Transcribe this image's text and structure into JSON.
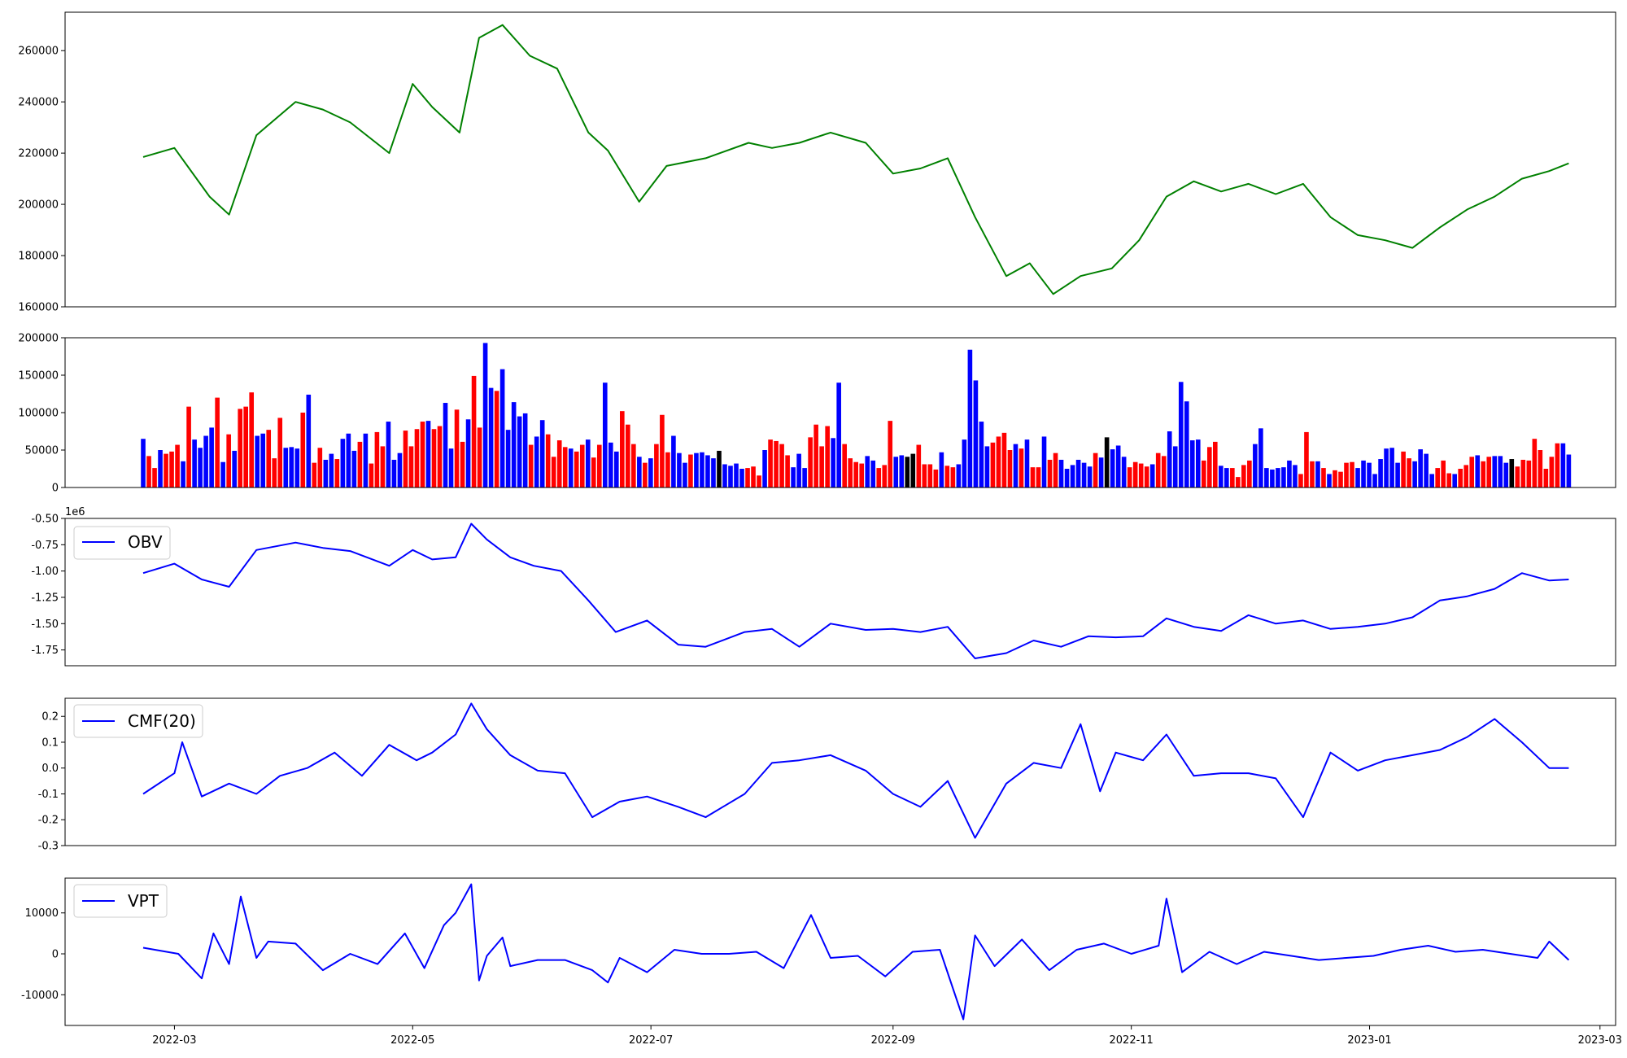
{
  "colors": {
    "price": "#008000",
    "indicator": "#0000ff",
    "up": "#0000ff",
    "down": "#ff0000",
    "flat": "#000000",
    "axes": "#000000"
  },
  "x_ticks": [
    "2022-03",
    "2022-05",
    "2022-07",
    "2022-09",
    "2022-11",
    "2023-01",
    "2023-03"
  ],
  "chart_data": [
    {
      "type": "line",
      "panel": "price",
      "title": "",
      "ylim": [
        160000,
        275000
      ],
      "yticks": [
        "160000",
        "180000",
        "200000",
        "220000",
        "240000",
        "260000"
      ],
      "x_range": [
        "2022-02-01",
        "2023-03-05"
      ],
      "x": [
        "2022-02-21",
        "2022-03-01",
        "2022-03-10",
        "2022-03-15",
        "2022-03-22",
        "2022-04-01",
        "2022-04-08",
        "2022-04-15",
        "2022-04-25",
        "2022-05-01",
        "2022-05-06",
        "2022-05-13",
        "2022-05-18",
        "2022-05-24",
        "2022-05-31",
        "2022-06-07",
        "2022-06-15",
        "2022-06-20",
        "2022-06-28",
        "2022-07-05",
        "2022-07-15",
        "2022-07-26",
        "2022-08-01",
        "2022-08-08",
        "2022-08-16",
        "2022-08-25",
        "2022-09-01",
        "2022-09-08",
        "2022-09-15",
        "2022-09-22",
        "2022-09-30",
        "2022-10-06",
        "2022-10-12",
        "2022-10-19",
        "2022-10-27",
        "2022-11-03",
        "2022-11-10",
        "2022-11-17",
        "2022-11-24",
        "2022-12-01",
        "2022-12-08",
        "2022-12-15",
        "2022-12-22",
        "2022-12-29",
        "2023-01-05",
        "2023-01-12",
        "2023-01-19",
        "2023-01-26",
        "2023-02-02",
        "2023-02-09",
        "2023-02-16",
        "2023-02-21"
      ],
      "values": [
        218500,
        222000,
        203000,
        196000,
        227000,
        240000,
        237000,
        232000,
        220000,
        247000,
        238000,
        228000,
        265000,
        270000,
        258000,
        253000,
        228000,
        221000,
        201000,
        215000,
        218000,
        224000,
        222000,
        224000,
        228000,
        224000,
        212000,
        214000,
        218000,
        195000,
        172000,
        177000,
        165000,
        172000,
        175000,
        186000,
        203000,
        209000,
        205000,
        208000,
        204000,
        208000,
        195000,
        188000,
        186000,
        183000,
        191000,
        198000,
        203000,
        210000,
        213000,
        216000
      ],
      "series_color": "#008000"
    },
    {
      "type": "bar",
      "panel": "volume",
      "ylim": [
        0,
        200000
      ],
      "yticks": [
        "0",
        "50000",
        "100000",
        "150000",
        "200000"
      ],
      "x_range": [
        "2022-02-01",
        "2023-03-05"
      ],
      "start_date": "2022-02-21",
      "end_date": "2023-02-21",
      "values": [
        65000,
        42000,
        26000,
        50000,
        45000,
        48000,
        57000,
        35000,
        108000,
        64000,
        53000,
        69000,
        80000,
        120000,
        34000,
        71000,
        49000,
        105000,
        108000,
        127000,
        69000,
        72000,
        77000,
        39000,
        93000,
        53000,
        54000,
        52000,
        100000,
        124000,
        33000,
        53000,
        37000,
        45000,
        38000,
        65000,
        72000,
        49000,
        61000,
        72000,
        32000,
        74000,
        55000,
        88000,
        37000,
        46000,
        76000,
        55000,
        78000,
        88000,
        89000,
        78000,
        82000,
        113000,
        52000,
        104000,
        61000,
        91000,
        149000,
        80000,
        193000,
        133000,
        129000,
        158000,
        77000,
        114000,
        95000,
        99000,
        57000,
        68000,
        90000,
        71000,
        41000,
        63000,
        54000,
        52000,
        48000,
        57000,
        64000,
        40000,
        57000,
        140000,
        60000,
        48000,
        102000,
        84000,
        58000,
        41000,
        33000,
        39000,
        58000,
        97000,
        47000,
        69000,
        46000,
        33000,
        44000,
        46000,
        47000,
        43000,
        39000,
        49000,
        31000,
        29000,
        32000,
        25000,
        26000,
        28000,
        16000,
        50000,
        64000,
        62000,
        58000,
        43000,
        27000,
        45000,
        26000,
        67000,
        84000,
        55000,
        82000,
        66000,
        140000,
        58000,
        39000,
        34000,
        32000,
        42000,
        36000,
        26000,
        30000,
        89000,
        41000,
        43000,
        41000,
        45000,
        57000,
        31000,
        31000,
        24000,
        47000,
        29000,
        27000,
        31000,
        64000,
        184000,
        143000,
        88000,
        55000,
        60000,
        68000,
        73000,
        50000,
        58000,
        52000,
        64000,
        27000,
        27000,
        68000,
        37000,
        46000,
        37000,
        25000,
        30000,
        37000,
        33000,
        28000,
        46000,
        40000,
        67000,
        51000,
        56000,
        41000,
        27000,
        34000,
        32000,
        28000,
        31000,
        46000,
        42000,
        75000,
        55000,
        141000,
        115000,
        63000,
        64000,
        36000,
        54000,
        61000,
        29000,
        26000,
        26000,
        14000,
        30000,
        36000,
        58000,
        79000,
        26000,
        24000,
        26000,
        27000,
        36000,
        30000,
        18000,
        74000,
        35000,
        35000,
        26000,
        18000,
        23000,
        21000,
        33000,
        34000,
        26000,
        36000,
        33000,
        18000,
        38000,
        52000,
        53000,
        33000,
        48000,
        39000,
        35000,
        51000,
        45000,
        18000,
        26000,
        36000,
        19000,
        18000,
        25000,
        30000,
        41000,
        43000,
        35000,
        41000,
        42000,
        42000,
        33000,
        38000,
        28000,
        37000,
        36000,
        65000,
        50000,
        25000,
        41000,
        59000,
        59000,
        44000
      ],
      "colors": "BRRBRRRBRBBBBRBRBRRRBBRRRBBBRBRRBBRBBBRBRRRBBBRRRRBRRBBRRBRRBBRBBBBBRBBRRRRBRRBRRBBBRRRBRBRRRBBBRBBBBKBBBBRRRBRRRRBBBRRRRBBRRRRBBRRRBBKKRRRRBRRBBBBBBRRRRBRBRRBRRBBBBBBRBKBBBRRRRBRRBBBBBBRRRBBRRRRBBBBBBBBRRRBRBRRRRBBBBBBBBRRBBBBRRRBRRRBRRBBBKRRRRRRRRBBRRRRBKBRBBR"
    },
    {
      "type": "line",
      "panel": "obv",
      "legend": "OBV",
      "legend_position": "upper-left",
      "offset_label": "1e6",
      "ylim": [
        -1.9,
        -0.5
      ],
      "yticks": [
        "-0.50",
        "-0.75",
        "-1.00",
        "-1.25",
        "-1.50",
        "-1.75"
      ],
      "x_range": [
        "2022-02-01",
        "2023-03-05"
      ],
      "x": [
        "2022-02-21",
        "2022-03-01",
        "2022-03-08",
        "2022-03-15",
        "2022-03-22",
        "2022-04-01",
        "2022-04-08",
        "2022-04-15",
        "2022-04-25",
        "2022-05-01",
        "2022-05-06",
        "2022-05-12",
        "2022-05-16",
        "2022-05-20",
        "2022-05-26",
        "2022-06-01",
        "2022-06-08",
        "2022-06-15",
        "2022-06-22",
        "2022-06-30",
        "2022-07-08",
        "2022-07-15",
        "2022-07-25",
        "2022-08-01",
        "2022-08-08",
        "2022-08-16",
        "2022-08-25",
        "2022-09-01",
        "2022-09-08",
        "2022-09-15",
        "2022-09-22",
        "2022-09-30",
        "2022-10-07",
        "2022-10-14",
        "2022-10-21",
        "2022-10-28",
        "2022-11-04",
        "2022-11-10",
        "2022-11-17",
        "2022-11-24",
        "2022-12-01",
        "2022-12-08",
        "2022-12-15",
        "2022-12-22",
        "2022-12-29",
        "2023-01-05",
        "2023-01-12",
        "2023-01-19",
        "2023-01-26",
        "2023-02-02",
        "2023-02-09",
        "2023-02-16",
        "2023-02-21"
      ],
      "values": [
        -1.02,
        -0.93,
        -1.08,
        -1.15,
        -0.8,
        -0.73,
        -0.78,
        -0.81,
        -0.95,
        -0.8,
        -0.89,
        -0.87,
        -0.55,
        -0.7,
        -0.87,
        -0.95,
        -1.0,
        -1.28,
        -1.58,
        -1.47,
        -1.7,
        -1.72,
        -1.58,
        -1.55,
        -1.72,
        -1.5,
        -1.56,
        -1.55,
        -1.58,
        -1.53,
        -1.83,
        -1.78,
        -1.66,
        -1.72,
        -1.62,
        -1.63,
        -1.62,
        -1.45,
        -1.53,
        -1.57,
        -1.42,
        -1.5,
        -1.47,
        -1.55,
        -1.53,
        -1.5,
        -1.44,
        -1.28,
        -1.24,
        -1.17,
        -1.02,
        -1.09,
        -1.08
      ],
      "series_color": "#0000ff"
    },
    {
      "type": "line",
      "panel": "cmf",
      "legend": "CMF(20)",
      "legend_position": "upper-left",
      "ylim": [
        -0.3,
        0.27
      ],
      "yticks": [
        "-0.3",
        "-0.2",
        "-0.1",
        "0.0",
        "0.1",
        "0.2"
      ],
      "x_range": [
        "2022-02-01",
        "2023-03-05"
      ],
      "x": [
        "2022-02-21",
        "2022-03-01",
        "2022-03-03",
        "2022-03-08",
        "2022-03-15",
        "2022-03-22",
        "2022-03-28",
        "2022-04-04",
        "2022-04-11",
        "2022-04-18",
        "2022-04-25",
        "2022-05-02",
        "2022-05-06",
        "2022-05-12",
        "2022-05-16",
        "2022-05-20",
        "2022-05-26",
        "2022-06-02",
        "2022-06-09",
        "2022-06-16",
        "2022-06-23",
        "2022-06-30",
        "2022-07-08",
        "2022-07-15",
        "2022-07-25",
        "2022-08-01",
        "2022-08-08",
        "2022-08-16",
        "2022-08-25",
        "2022-09-01",
        "2022-09-08",
        "2022-09-15",
        "2022-09-22",
        "2022-09-30",
        "2022-10-07",
        "2022-10-14",
        "2022-10-19",
        "2022-10-24",
        "2022-10-28",
        "2022-11-04",
        "2022-11-10",
        "2022-11-17",
        "2022-11-24",
        "2022-12-01",
        "2022-12-08",
        "2022-12-15",
        "2022-12-22",
        "2022-12-29",
        "2023-01-05",
        "2023-01-12",
        "2023-01-19",
        "2023-01-26",
        "2023-02-02",
        "2023-02-09",
        "2023-02-16",
        "2023-02-21"
      ],
      "values": [
        -0.1,
        -0.02,
        0.1,
        -0.11,
        -0.06,
        -0.1,
        -0.03,
        0.0,
        0.06,
        -0.03,
        0.09,
        0.03,
        0.06,
        0.13,
        0.25,
        0.15,
        0.05,
        -0.01,
        -0.02,
        -0.19,
        -0.13,
        -0.11,
        -0.15,
        -0.19,
        -0.1,
        0.02,
        0.03,
        0.05,
        -0.01,
        -0.1,
        -0.15,
        -0.05,
        -0.27,
        -0.06,
        0.02,
        0.0,
        0.17,
        -0.09,
        0.06,
        0.03,
        0.13,
        -0.03,
        -0.02,
        -0.02,
        -0.04,
        -0.19,
        0.06,
        -0.01,
        0.03,
        0.05,
        0.07,
        0.12,
        0.19,
        0.1,
        0.0,
        0.0
      ],
      "series_color": "#0000ff"
    },
    {
      "type": "line",
      "panel": "vpt",
      "legend": "VPT",
      "legend_position": "upper-left",
      "ylim": [
        -17500,
        18500
      ],
      "yticks": [
        "-10000",
        "0",
        "10000"
      ],
      "x_range": [
        "2022-02-01",
        "2023-03-05"
      ],
      "x": [
        "2022-02-21",
        "2022-03-02",
        "2022-03-08",
        "2022-03-11",
        "2022-03-15",
        "2022-03-18",
        "2022-03-22",
        "2022-03-25",
        "2022-04-01",
        "2022-04-08",
        "2022-04-15",
        "2022-04-22",
        "2022-04-29",
        "2022-05-04",
        "2022-05-09",
        "2022-05-12",
        "2022-05-16",
        "2022-05-18",
        "2022-05-20",
        "2022-05-24",
        "2022-05-26",
        "2022-06-02",
        "2022-06-09",
        "2022-06-16",
        "2022-06-20",
        "2022-06-23",
        "2022-06-30",
        "2022-07-07",
        "2022-07-14",
        "2022-07-21",
        "2022-07-28",
        "2022-08-04",
        "2022-08-11",
        "2022-08-16",
        "2022-08-23",
        "2022-08-30",
        "2022-09-06",
        "2022-09-13",
        "2022-09-19",
        "2022-09-22",
        "2022-09-27",
        "2022-10-04",
        "2022-10-11",
        "2022-10-18",
        "2022-10-25",
        "2022-11-01",
        "2022-11-08",
        "2022-11-10",
        "2022-11-14",
        "2022-11-21",
        "2022-11-28",
        "2022-12-05",
        "2022-12-12",
        "2022-12-19",
        "2022-12-26",
        "2023-01-02",
        "2023-01-09",
        "2023-01-16",
        "2023-01-23",
        "2023-01-30",
        "2023-02-06",
        "2023-02-13",
        "2023-02-16",
        "2023-02-21"
      ],
      "values": [
        1500,
        0,
        -6000,
        5000,
        -2500,
        14000,
        -1000,
        3000,
        2500,
        -4000,
        0,
        -2500,
        5000,
        -3500,
        7000,
        10000,
        17000,
        -6500,
        -500,
        4000,
        -3000,
        -1500,
        -1500,
        -4000,
        -7000,
        -1000,
        -4500,
        1000,
        0,
        0,
        500,
        -3500,
        9500,
        -1000,
        -500,
        -5500,
        500,
        1000,
        -16000,
        4500,
        -3000,
        3500,
        -4000,
        1000,
        2500,
        0,
        2000,
        13500,
        -4500,
        500,
        -2500,
        500,
        -500,
        -1500,
        -1000,
        -500,
        1000,
        2000,
        500,
        1000,
        0,
        -1000,
        3000,
        -1500
      ],
      "series_color": "#0000ff"
    }
  ]
}
